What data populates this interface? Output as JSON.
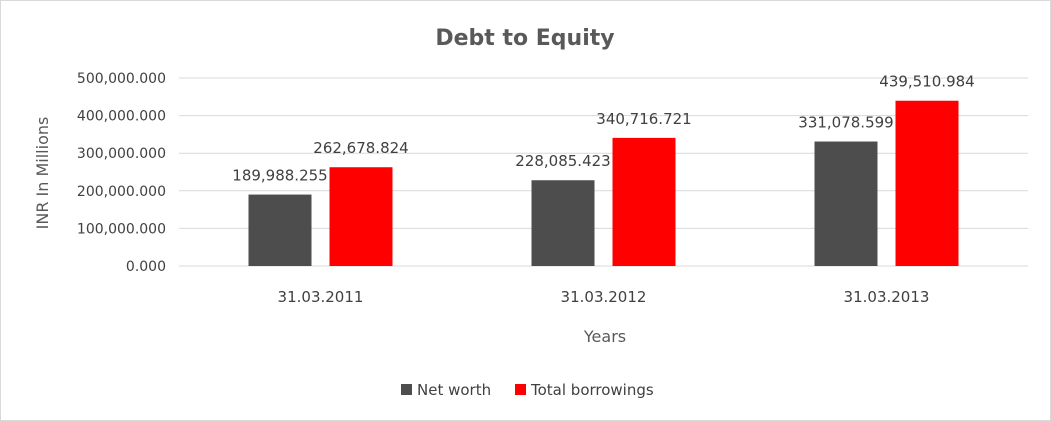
{
  "chart_data": {
    "type": "bar",
    "title": "Debt to Equity",
    "xlabel": "Years",
    "ylabel": "INR In Millions",
    "categories": [
      "31.03.2011",
      "31.03.2012",
      "31.03.2013"
    ],
    "yticks": [
      "0.000",
      "100,000.000",
      "200,000.000",
      "300,000.000",
      "400,000.000",
      "500,000.000"
    ],
    "ylim": [
      0,
      500000
    ],
    "grid": true,
    "legend_position": "bottom",
    "series": [
      {
        "name": "Net worth",
        "color": "#4d4d4d",
        "values": [
          189988.255,
          228085.423,
          331078.599
        ],
        "labels": [
          "189,988.255",
          "228,085.423",
          "331,078.599"
        ]
      },
      {
        "name": "Total borrowings",
        "color": "#ff0000",
        "values": [
          262678.824,
          340716.721,
          439510.984
        ],
        "labels": [
          "262,678.824",
          "340,716.721",
          "439,510.984"
        ]
      }
    ]
  }
}
